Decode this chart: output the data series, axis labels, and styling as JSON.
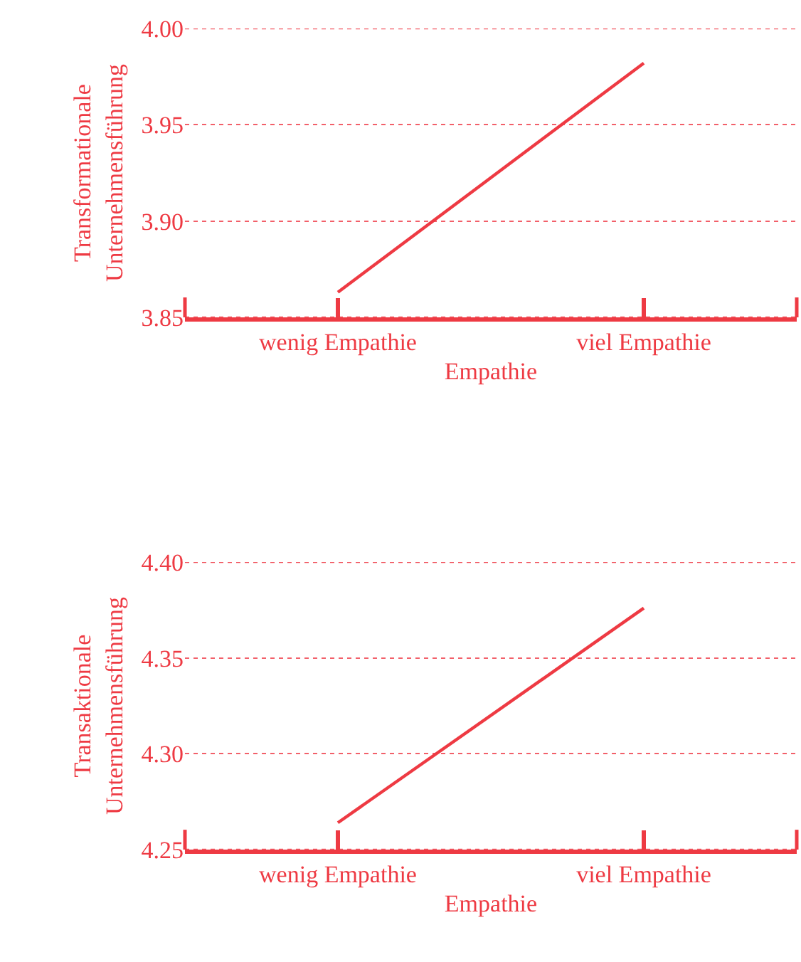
{
  "chart_data": [
    {
      "type": "line",
      "categories": [
        "wenig Empathie",
        "viel Empathie"
      ],
      "xlabel": "Empathie",
      "ylabel": "Transformationale\nUnternehmensführung",
      "ylim": [
        3.85,
        4.0
      ],
      "yticks": [
        3.85,
        {
          "value": 3.9,
          "label": "3.90"
        },
        3.95,
        {
          "value": 4.0,
          "label": "4.00"
        }
      ],
      "grid": "y",
      "marker": "none",
      "line_style": "solid",
      "series": [
        {
          "color": "#ee3a43",
          "values": [
            3.863,
            3.982
          ]
        }
      ]
    },
    {
      "type": "line",
      "categories": [
        "wenig Empathie",
        "viel Empathie"
      ],
      "xlabel": "Empathie",
      "ylabel": "Transaktionale\nUnternehmensführung",
      "ylim": [
        4.25,
        4.4
      ],
      "yticks": [
        4.25,
        {
          "value": 4.3,
          "label": "4.30"
        },
        4.35,
        {
          "value": 4.4,
          "label": "4.40"
        }
      ],
      "grid": "y",
      "marker": "none",
      "line_style": "solid",
      "series": [
        {
          "color": "#ee3a43",
          "values": [
            4.264,
            4.376
          ]
        }
      ]
    }
  ]
}
